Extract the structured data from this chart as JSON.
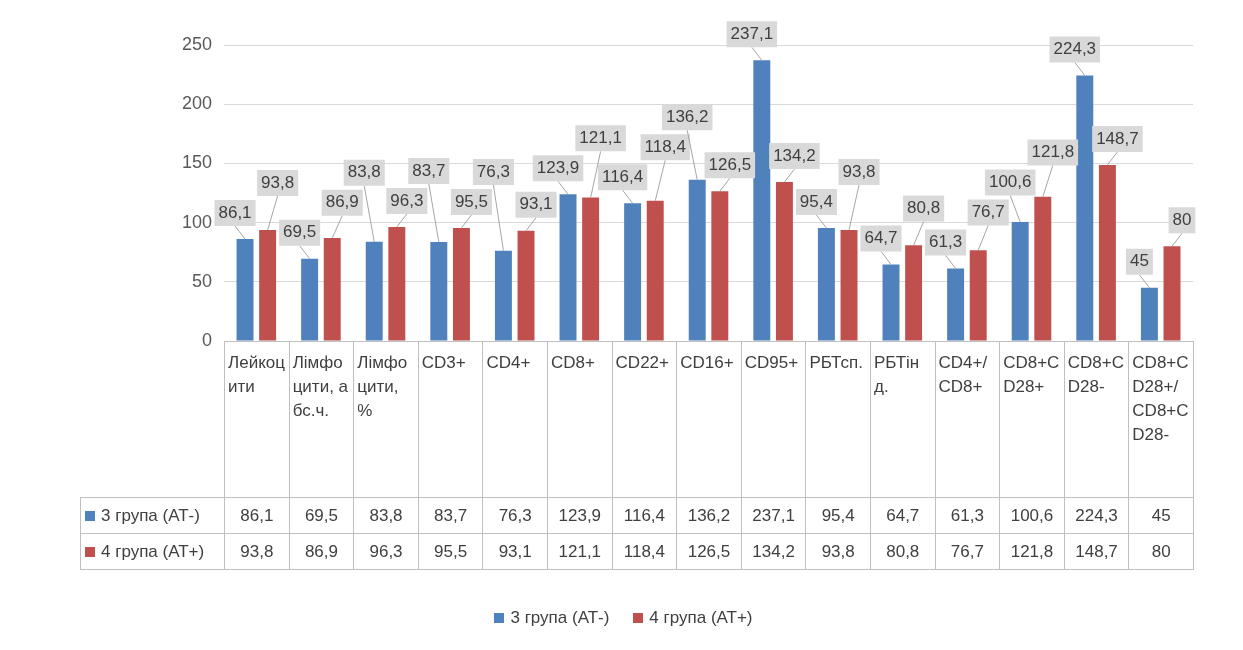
{
  "chart_data": {
    "type": "bar",
    "categories": [
      "Лейкоцити",
      "Лімфоцити, абс.ч.",
      "Лімфоцити, %",
      "CD3+",
      "CD4+",
      "CD8+",
      "CD22+",
      "CD16+",
      "CD95+",
      "РБТсп.",
      "РБТінд.",
      "CD4+/CD8+",
      "CD8+CD28+",
      "CD8+CD28-",
      "CD8+CD28+/CD8+CD28-"
    ],
    "series": [
      {
        "name": "3 група (АТ-)",
        "color": "#4f81bd",
        "values": [
          86.1,
          69.5,
          83.8,
          83.7,
          76.3,
          123.9,
          116.4,
          136.2,
          237.1,
          95.4,
          64.7,
          61.3,
          100.6,
          224.3,
          45
        ],
        "value_labels": [
          "86,1",
          "69,5",
          "83,8",
          "83,7",
          "76,3",
          "123,9",
          "116,4",
          "136,2",
          "237,1",
          "95,4",
          "64,7",
          "61,3",
          "100,6",
          "224,3",
          "45"
        ]
      },
      {
        "name": "4 група (АТ+)",
        "color": "#c0504d",
        "values": [
          93.8,
          86.9,
          96.3,
          95.5,
          93.1,
          121.1,
          118.4,
          126.5,
          134.2,
          93.8,
          80.8,
          76.7,
          121.8,
          148.7,
          80
        ],
        "value_labels": [
          "93,8",
          "86,9",
          "96,3",
          "95,5",
          "93,1",
          "121,1",
          "118,4",
          "126,5",
          "134,2",
          "93,8",
          "80,8",
          "76,7",
          "121,8",
          "148,7",
          "80"
        ]
      }
    ],
    "ylim": [
      0,
      250
    ],
    "yticks": [
      0,
      50,
      100,
      150,
      200,
      250
    ],
    "grid": "y",
    "legend": "bottom"
  }
}
